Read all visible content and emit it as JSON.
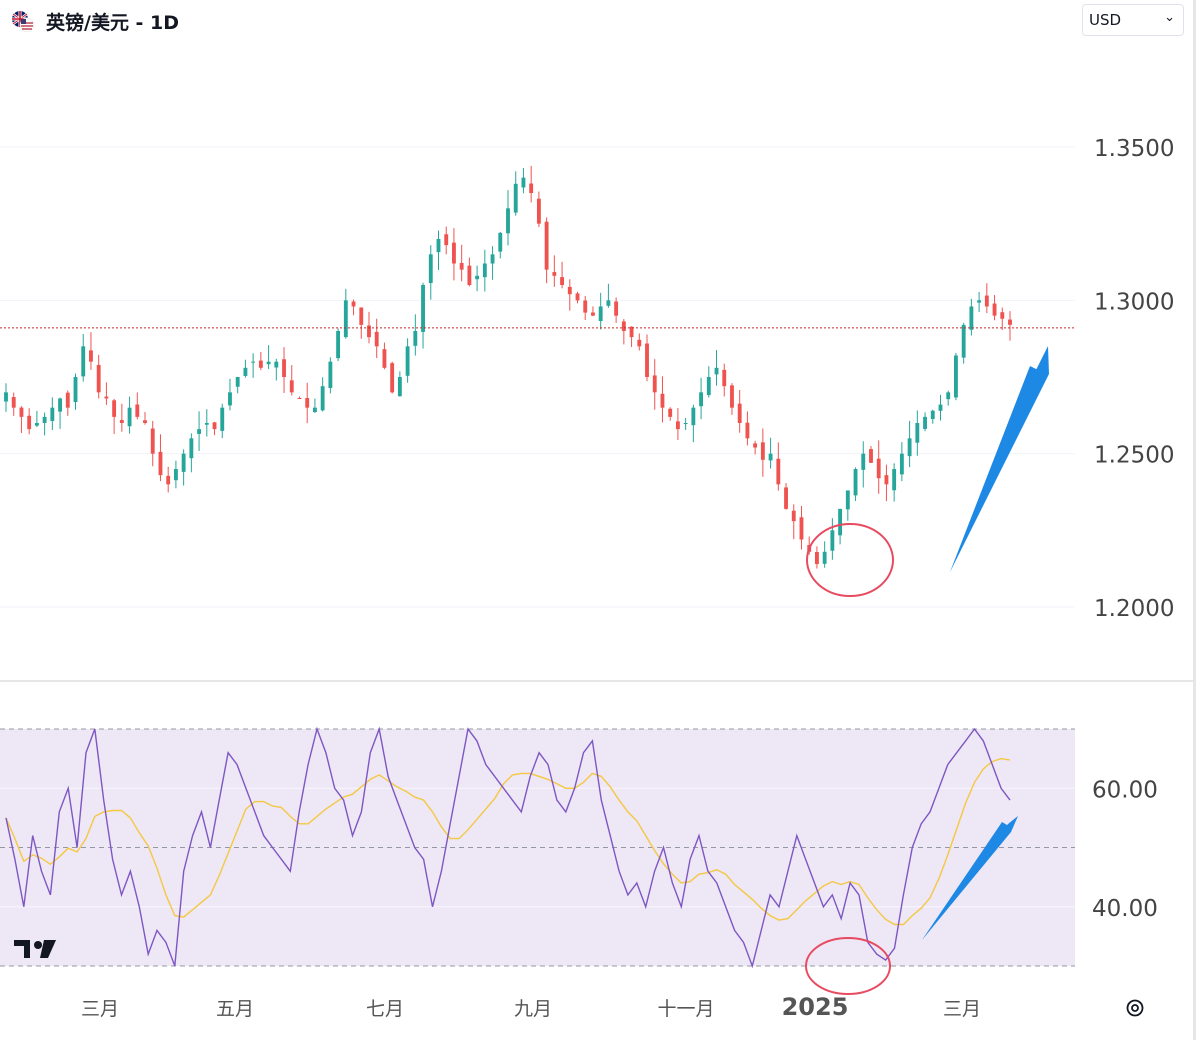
{
  "header": {
    "title": "英镑/美元 - 1D",
    "currency": "USD"
  },
  "colors": {
    "up": "#26a69a",
    "down": "#ef5350",
    "rsi_line": "#7e57c2",
    "rsi_ma": "#f5c842",
    "rsi_band": "#ede7f6",
    "annotation_circle": "#e84a5f",
    "annotation_arrow": "#1e88e5",
    "price_line": "#c62828"
  },
  "chart_data": [
    {
      "type": "candlestick",
      "series_name": "",
      "y_ticks": [
        "1.3500",
        "1.3000",
        "1.2500",
        "1.2000"
      ],
      "y_range": [
        1.18,
        1.36
      ],
      "current_price": 1.291,
      "x_ticks": [
        "三月",
        "五月",
        "七月",
        "九月",
        "十一月",
        "2025",
        "三月"
      ],
      "x": [
        "2024-02",
        "2024-03",
        "2024-04",
        "2024-05",
        "2024-06",
        "2024-07",
        "2024-08",
        "2024-09",
        "2024-10",
        "2024-11",
        "2024-12",
        "2025-01",
        "2025-02",
        "2025-03"
      ],
      "close": [
        1.265,
        1.27,
        1.25,
        1.265,
        1.28,
        1.29,
        1.29,
        1.335,
        1.305,
        1.28,
        1.255,
        1.225,
        1.25,
        1.292
      ],
      "path": [
        1.27,
        1.265,
        1.262,
        1.258,
        1.26,
        1.262,
        1.265,
        1.268,
        1.265,
        1.275,
        1.285,
        1.28,
        1.27,
        1.268,
        1.262,
        1.26,
        1.265,
        1.262,
        1.26,
        1.25,
        1.243,
        1.24,
        1.245,
        1.25,
        1.255,
        1.258,
        1.26,
        1.258,
        1.265,
        1.27,
        1.275,
        1.278,
        1.28,
        1.278,
        1.28,
        1.28,
        1.275,
        1.27,
        1.268,
        1.265,
        1.265,
        1.272,
        1.28,
        1.29,
        1.3,
        1.298,
        1.292,
        1.288,
        1.285,
        1.278,
        1.27,
        1.275,
        1.285,
        1.29,
        1.305,
        1.315,
        1.32,
        1.318,
        1.312,
        1.31,
        1.305,
        1.308,
        1.312,
        1.315,
        1.322,
        1.33,
        1.338,
        1.34,
        1.335,
        1.325,
        1.31,
        1.308,
        1.305,
        1.302,
        1.3,
        1.296,
        1.295,
        1.298,
        1.3,
        1.295,
        1.29,
        1.288,
        1.285,
        1.275,
        1.27,
        1.265,
        1.262,
        1.258,
        1.26,
        1.265,
        1.27,
        1.275,
        1.278,
        1.272,
        1.265,
        1.26,
        1.255,
        1.252,
        1.248,
        1.25,
        1.24,
        1.232,
        1.228,
        1.222,
        1.218,
        1.214,
        1.218,
        1.225,
        1.232,
        1.238,
        1.245,
        1.25,
        1.247,
        1.242,
        1.24,
        1.245,
        1.25,
        1.255,
        1.26,
        1.262,
        1.264,
        1.266,
        1.27,
        1.282,
        1.292,
        1.298,
        1.3,
        1.298,
        1.295,
        1.294,
        1.292
      ]
    },
    {
      "type": "line",
      "series_name": "",
      "y_ticks": [
        "60.00",
        "40.00"
      ],
      "y_range": [
        30,
        72
      ],
      "levels": [
        70,
        50,
        30
      ],
      "rsi": [
        55,
        48,
        40,
        52,
        46,
        42,
        56,
        60,
        50,
        66,
        70,
        58,
        48,
        42,
        46,
        40,
        32,
        36,
        34,
        30,
        46,
        52,
        56,
        50,
        58,
        66,
        64,
        60,
        56,
        52,
        50,
        48,
        46,
        56,
        64,
        70,
        66,
        60,
        58,
        52,
        56,
        66,
        70,
        62,
        58,
        54,
        50,
        48,
        40,
        46,
        54,
        62,
        70,
        68,
        64,
        62,
        60,
        58,
        56,
        62,
        66,
        64,
        58,
        56,
        60,
        66,
        68,
        58,
        52,
        46,
        42,
        44,
        40,
        46,
        50,
        44,
        40,
        48,
        52,
        46,
        44,
        40,
        36,
        34,
        30,
        36,
        42,
        40,
        46,
        52,
        48,
        44,
        40,
        42,
        38,
        44,
        42,
        34,
        32,
        31,
        33,
        42,
        50,
        54,
        56,
        60,
        64,
        66,
        68,
        70,
        68,
        64,
        60,
        58
      ]
    }
  ],
  "annotations": {
    "circles": 2,
    "arrows": 2
  }
}
